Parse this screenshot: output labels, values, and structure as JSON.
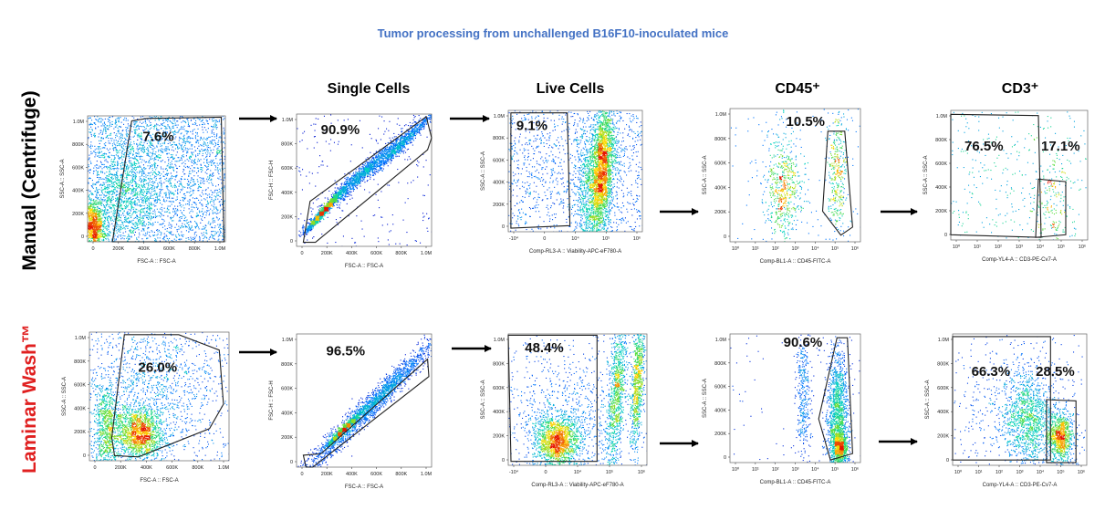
{
  "title": "Tumor processing from unchallenged B16F10-inoculated mice",
  "row_labels": [
    "Manual (Centrifuge)",
    "Laminar Wash™"
  ],
  "row_label_colors": [
    "#000000",
    "#e02020"
  ],
  "column_headers": [
    "",
    "Single Cells",
    "Live Cells",
    "CD45⁺",
    "CD3⁺"
  ],
  "chart_data": [
    {
      "type": "scatter",
      "row": 0,
      "col": 0,
      "xlabel": "FSC-A :: FSC-A",
      "ylabel": "SSC-A :: SSC-A",
      "xticks": [
        "0",
        "200K",
        "400K",
        "600K",
        "800K",
        "1.0M"
      ],
      "yticks": [
        "0",
        "200K",
        "400K",
        "600K",
        "800K",
        "1.0M"
      ],
      "density": "high",
      "gates": [
        {
          "label": "7.6%",
          "percent": 7.6
        }
      ]
    },
    {
      "type": "scatter",
      "row": 0,
      "col": 1,
      "xlabel": "FSC-A :: FSC-A",
      "ylabel": "FSC-H :: FSC-H",
      "xticks": [
        "0",
        "200K",
        "400K",
        "600K",
        "800K",
        "1.0M"
      ],
      "yticks": [
        "0",
        "200K",
        "400K",
        "600K",
        "800K",
        "1.0M"
      ],
      "density": "medium",
      "gates": [
        {
          "label": "90.9%",
          "percent": 90.9
        }
      ]
    },
    {
      "type": "scatter",
      "row": 0,
      "col": 2,
      "xlabel": "Comp-RL3-A :: Viability-APC-eF780-A",
      "ylabel": "SSC-A :: SSC-A",
      "xticks": [
        "-10⁴",
        "0",
        "10⁴",
        "10⁵",
        "10⁶"
      ],
      "yticks": [
        "0",
        "200K",
        "400K",
        "600K",
        "800K",
        "1.0M"
      ],
      "density": "medium",
      "gates": [
        {
          "label": "9.1%",
          "percent": 9.1
        }
      ]
    },
    {
      "type": "scatter",
      "row": 0,
      "col": 3,
      "xlabel": "Comp-BL1-A :: CD45-FITC-A",
      "ylabel": "SSC-A :: SSC-A",
      "xticks": [
        "10⁰",
        "10¹",
        "10²",
        "10³",
        "10⁴",
        "10⁵",
        "10⁶"
      ],
      "yticks": [
        "0",
        "200K",
        "400K",
        "600K",
        "800K",
        "1.0M"
      ],
      "density": "sparse",
      "gates": [
        {
          "label": "10.5%",
          "percent": 10.5
        }
      ]
    },
    {
      "type": "scatter",
      "row": 0,
      "col": 4,
      "xlabel": "Comp-YL4-A :: CD3-PE-Cv7-A",
      "ylabel": "SSC-A :: SSC-A",
      "xticks": [
        "10⁰",
        "10¹",
        "10²",
        "10³",
        "10⁴",
        "10⁵",
        "10⁶"
      ],
      "yticks": [
        "0",
        "200K",
        "400K",
        "600K",
        "800K",
        "1.0M"
      ],
      "density": "very-sparse",
      "gates": [
        {
          "label": "76.5%",
          "percent": 76.5
        },
        {
          "label": "17.1%",
          "percent": 17.1
        }
      ]
    },
    {
      "type": "scatter",
      "row": 1,
      "col": 0,
      "xlabel": "FSC-A :: FSC-A",
      "ylabel": "SSC-A :: SSC-A",
      "xticks": [
        "0",
        "200K",
        "400K",
        "600K",
        "800K",
        "1.0M"
      ],
      "yticks": [
        "0",
        "200K",
        "400K",
        "600K",
        "800K",
        "1.0M"
      ],
      "density": "medium",
      "gates": [
        {
          "label": "26.0%",
          "percent": 26.0
        }
      ]
    },
    {
      "type": "scatter",
      "row": 1,
      "col": 1,
      "xlabel": "FSC-A :: FSC-A",
      "ylabel": "FSC-H :: FSC-H",
      "xticks": [
        "0",
        "200K",
        "400K",
        "600K",
        "800K",
        "1.0M"
      ],
      "yticks": [
        "0",
        "200K",
        "400K",
        "600K",
        "800K",
        "1.0M"
      ],
      "density": "medium",
      "gates": [
        {
          "label": "96.5%",
          "percent": 96.5
        }
      ]
    },
    {
      "type": "scatter",
      "row": 1,
      "col": 2,
      "xlabel": "Comp-RL3-A :: Viability-APC-eF780-A",
      "ylabel": "SSC-A :: SSC-A",
      "xticks": [
        "-10⁴",
        "0",
        "10⁴",
        "10⁵",
        "10⁶"
      ],
      "yticks": [
        "0",
        "200K",
        "400K",
        "600K",
        "800K",
        "1.0M"
      ],
      "density": "medium",
      "gates": [
        {
          "label": "48.4%",
          "percent": 48.4
        }
      ]
    },
    {
      "type": "scatter",
      "row": 1,
      "col": 3,
      "xlabel": "Comp-BL1-A :: CD45-FITC-A",
      "ylabel": "SSC-A :: SSC-A",
      "xticks": [
        "10⁰",
        "10¹",
        "10²",
        "10³",
        "10⁴",
        "10⁵",
        "10⁶"
      ],
      "yticks": [
        "0",
        "200K",
        "400K",
        "600K",
        "800K",
        "1.0M"
      ],
      "density": "medium",
      "gates": [
        {
          "label": "90.6%",
          "percent": 90.6
        }
      ]
    },
    {
      "type": "scatter",
      "row": 1,
      "col": 4,
      "xlabel": "Comp-YL4-A :: CD3-PE-Cv7-A",
      "ylabel": "SSC-A :: SSC-A",
      "xticks": [
        "10⁰",
        "10¹",
        "10²",
        "10³",
        "10⁴",
        "10⁵",
        "10⁶"
      ],
      "yticks": [
        "0",
        "200K",
        "400K",
        "600K",
        "800K",
        "1.0M"
      ],
      "density": "medium",
      "gates": [
        {
          "label": "66.3%",
          "percent": 66.3
        },
        {
          "label": "28.5%",
          "percent": 28.5
        }
      ]
    }
  ]
}
